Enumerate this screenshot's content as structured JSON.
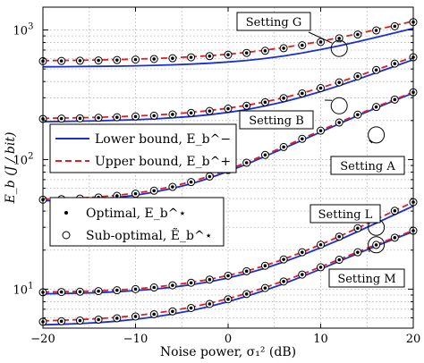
{
  "chart_data": {
    "type": "line",
    "xlabel": "Noise power, σ₁² (dB)",
    "ylabel": "E_b (J / bit)",
    "xlim": [
      -20,
      20
    ],
    "ylim": [
      5,
      1500
    ],
    "yscale": "log",
    "grid": true,
    "xticks": [
      "−20",
      "−10",
      "0",
      "10",
      "20"
    ],
    "yticks": [
      {
        "label": "10",
        "sup": "1",
        "value": 10
      },
      {
        "label": "10",
        "sup": "2",
        "value": 100
      },
      {
        "label": "10",
        "sup": "3",
        "value": 1000
      }
    ],
    "x": [
      -20,
      -18,
      -16,
      -14,
      -12,
      -10,
      -8,
      -6,
      -4,
      -2,
      0,
      2,
      4,
      6,
      8,
      10,
      12,
      14,
      16,
      18,
      20
    ],
    "legend": {
      "box1": [
        {
          "name": "Lower bound, E_b^−",
          "style": "solid",
          "color": "#1a2fcf"
        },
        {
          "name": "Upper bound, E_b^+",
          "style": "dashed",
          "color": "#e02020"
        }
      ],
      "box2": [
        {
          "name": "Optimal, E_b^⋆",
          "marker": "dot"
        },
        {
          "name": "Sub-optimal, Ẽ_b^⋆",
          "marker": "circle"
        }
      ]
    },
    "annotations": [
      {
        "label": "Setting G",
        "x": 12,
        "y": 720
      },
      {
        "label": "Setting B",
        "x": 12,
        "y": 260
      },
      {
        "label": "Setting A",
        "x": 16,
        "y": 155
      },
      {
        "label": "Setting L",
        "x": 16,
        "y": 30
      },
      {
        "label": "Setting M",
        "x": 16,
        "y": 22
      }
    ],
    "series": [
      {
        "setting": "G",
        "name": "Lower bound",
        "kind": "lower",
        "values": [
          520,
          521,
          522,
          524,
          526,
          529,
          533,
          538,
          545,
          554,
          566,
          582,
          603,
          630,
          664,
          706,
          755,
          812,
          877,
          950,
          1030
        ]
      },
      {
        "setting": "G",
        "name": "Upper bound",
        "kind": "upper",
        "values": [
          580,
          582,
          584,
          587,
          591,
          596,
          602,
          610,
          620,
          633,
          650,
          671,
          698,
          731,
          771,
          818,
          873,
          936,
          1006,
          1083,
          1168
        ]
      },
      {
        "setting": "G",
        "name": "Optimal",
        "kind": "optimal",
        "values": [
          575,
          577,
          579,
          582,
          586,
          591,
          597,
          605,
          615,
          628,
          644,
          665,
          691,
          723,
          762,
          808,
          862,
          923,
          992,
          1068,
          1150
        ]
      },
      {
        "setting": "B",
        "name": "Lower bound",
        "kind": "lower",
        "values": [
          196,
          197,
          198,
          199,
          201,
          203,
          206,
          210,
          215,
          222,
          231,
          243,
          259,
          279,
          304,
          335,
          372,
          416,
          467,
          525,
          590
        ]
      },
      {
        "setting": "B",
        "name": "Upper bound",
        "kind": "upper",
        "values": [
          208,
          209,
          210,
          212,
          214,
          217,
          220,
          225,
          231,
          239,
          249,
          262,
          279,
          300,
          326,
          358,
          396,
          441,
          493,
          552,
          618
        ]
      },
      {
        "setting": "B",
        "name": "Optimal",
        "kind": "optimal",
        "values": [
          206,
          207,
          208,
          210,
          212,
          215,
          218,
          223,
          229,
          237,
          247,
          260,
          277,
          298,
          324,
          356,
          394,
          439,
          491,
          550,
          616
        ]
      },
      {
        "setting": "A",
        "name": "Lower bound",
        "kind": "lower",
        "values": [
          48,
          48.5,
          49,
          49.8,
          51,
          53,
          56,
          60,
          65,
          72,
          81,
          92,
          106,
          122,
          141,
          163,
          189,
          218,
          250,
          286,
          326
        ]
      },
      {
        "setting": "A",
        "name": "Upper bound",
        "kind": "upper",
        "values": [
          49.5,
          50,
          50.5,
          51.5,
          53,
          55,
          58,
          62,
          67.5,
          74.5,
          83.5,
          95,
          109,
          125.5,
          145,
          167.5,
          193.5,
          222.5,
          255,
          291,
          331
        ]
      },
      {
        "setting": "A",
        "name": "Optimal",
        "kind": "optimal",
        "values": [
          49,
          49.5,
          50,
          51,
          52.5,
          54.5,
          57.5,
          61.5,
          67,
          74,
          83,
          94.5,
          108.5,
          125,
          144.5,
          167,
          193,
          222,
          254.5,
          290.5,
          330.5
        ]
      },
      {
        "setting": "L",
        "name": "Lower bound",
        "kind": "lower",
        "values": [
          9.2,
          9.25,
          9.3,
          9.4,
          9.55,
          9.75,
          10,
          10.35,
          10.8,
          11.4,
          12.2,
          13.2,
          14.5,
          16.2,
          18.3,
          20.9,
          24,
          27.8,
          32.3,
          37.6,
          43.8
        ]
      },
      {
        "setting": "L",
        "name": "Upper bound",
        "kind": "upper",
        "values": [
          9.5,
          9.55,
          9.6,
          9.7,
          9.85,
          10.05,
          10.35,
          10.75,
          11.25,
          11.9,
          12.75,
          13.8,
          15.2,
          17,
          19.3,
          22.1,
          25.5,
          29.6,
          34.5,
          40.3,
          47
        ]
      },
      {
        "setting": "L",
        "name": "Optimal",
        "kind": "optimal",
        "values": [
          9.45,
          9.5,
          9.55,
          9.65,
          9.8,
          10,
          10.3,
          10.7,
          11.2,
          11.85,
          12.7,
          13.75,
          15.15,
          16.95,
          19.25,
          22,
          25.4,
          29.5,
          34.4,
          40.2,
          46.9
        ]
      },
      {
        "setting": "M",
        "name": "Lower bound",
        "kind": "lower",
        "values": [
          5.3,
          5.35,
          5.42,
          5.52,
          5.66,
          5.85,
          6.1,
          6.42,
          6.83,
          7.35,
          8,
          8.8,
          9.8,
          11,
          12.5,
          14.3,
          16.4,
          18.8,
          21.5,
          24.5,
          27.8
        ]
      },
      {
        "setting": "M",
        "name": "Upper bound",
        "kind": "upper",
        "values": [
          5.7,
          5.75,
          5.82,
          5.92,
          6.06,
          6.25,
          6.5,
          6.83,
          7.25,
          7.78,
          8.45,
          9.27,
          10.3,
          11.55,
          13.05,
          14.85,
          16.95,
          19.35,
          22.05,
          25.05,
          28.35
        ]
      },
      {
        "setting": "M",
        "name": "Optimal",
        "kind": "optimal",
        "values": [
          5.6,
          5.65,
          5.72,
          5.82,
          5.96,
          6.15,
          6.4,
          6.73,
          7.15,
          7.68,
          8.35,
          9.17,
          10.2,
          11.45,
          12.95,
          14.75,
          16.85,
          19.25,
          21.95,
          24.95,
          28.25
        ]
      }
    ]
  }
}
